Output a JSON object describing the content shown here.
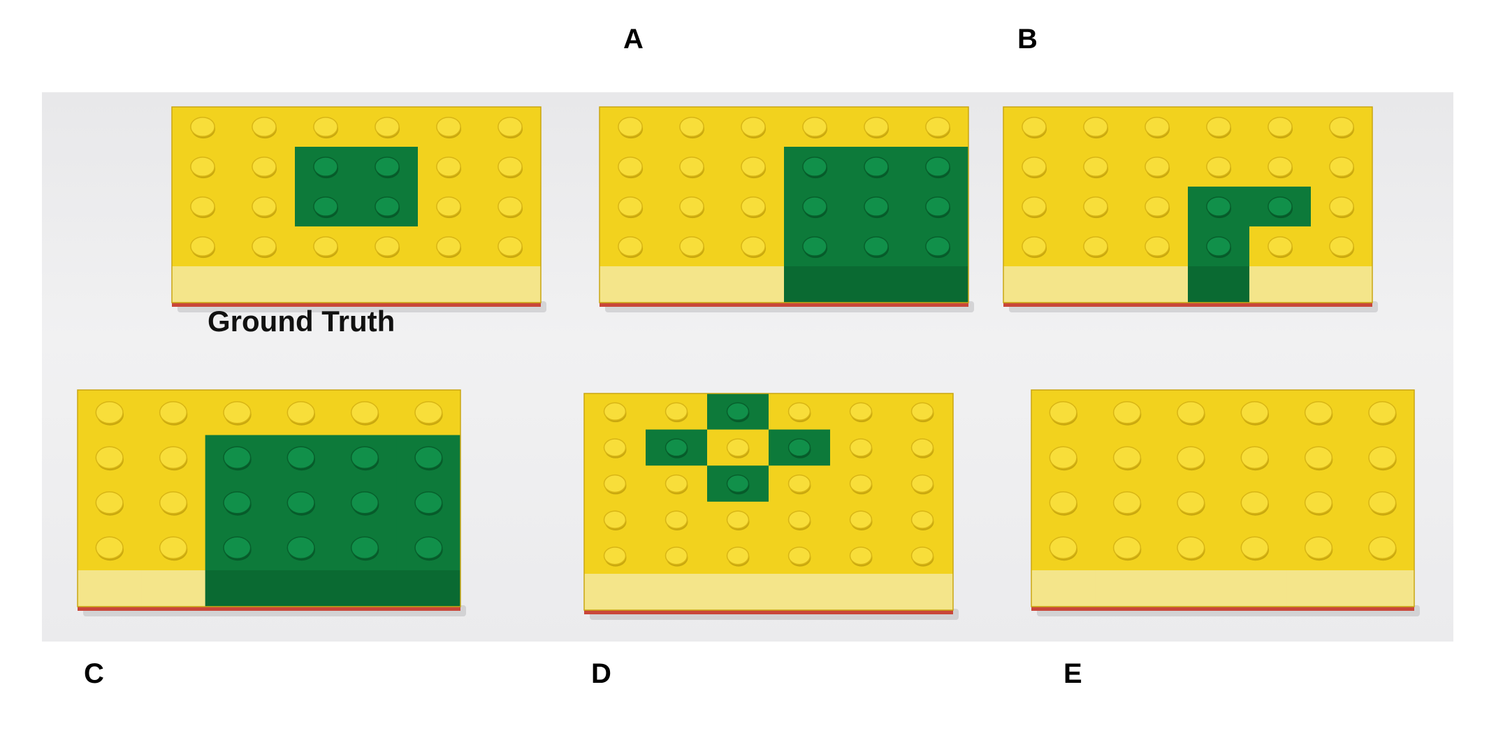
{
  "labels": {
    "a": "A",
    "b": "B",
    "c": "C",
    "d": "D",
    "e": "E",
    "ground_truth": "Ground Truth"
  },
  "colors": {
    "yellow": "#f2d21e",
    "yellow_side": "#f4e58a",
    "green": "#0d7a3a",
    "green_side": "#0a6a32",
    "red_base": "#c9463a",
    "background": "#ececee"
  },
  "boards": [
    {
      "id": "ground-truth",
      "cols": 6,
      "rows": 4,
      "green_studs": [
        [
          2,
          1
        ],
        [
          3,
          1
        ],
        [
          2,
          2
        ],
        [
          3,
          2
        ]
      ]
    },
    {
      "id": "A",
      "cols": 6,
      "rows": 4,
      "green_studs": [
        [
          3,
          1
        ],
        [
          4,
          1
        ],
        [
          5,
          1
        ],
        [
          3,
          2
        ],
        [
          4,
          2
        ],
        [
          5,
          2
        ],
        [
          3,
          3
        ],
        [
          4,
          3
        ],
        [
          5,
          3
        ]
      ]
    },
    {
      "id": "B",
      "cols": 6,
      "rows": 4,
      "green_studs": [
        [
          3,
          2
        ],
        [
          4,
          2
        ],
        [
          3,
          3
        ]
      ]
    },
    {
      "id": "C",
      "cols": 6,
      "rows": 4,
      "green_studs": [
        [
          2,
          1
        ],
        [
          3,
          1
        ],
        [
          4,
          1
        ],
        [
          5,
          1
        ],
        [
          2,
          2
        ],
        [
          3,
          2
        ],
        [
          4,
          2
        ],
        [
          5,
          2
        ],
        [
          2,
          3
        ],
        [
          3,
          3
        ],
        [
          4,
          3
        ],
        [
          5,
          3
        ]
      ]
    },
    {
      "id": "D",
      "cols": 6,
      "rows": 5,
      "green_studs": [
        [
          2,
          0
        ],
        [
          1,
          1
        ],
        [
          3,
          1
        ],
        [
          2,
          2
        ]
      ]
    },
    {
      "id": "E",
      "cols": 6,
      "rows": 4,
      "green_studs": []
    }
  ]
}
